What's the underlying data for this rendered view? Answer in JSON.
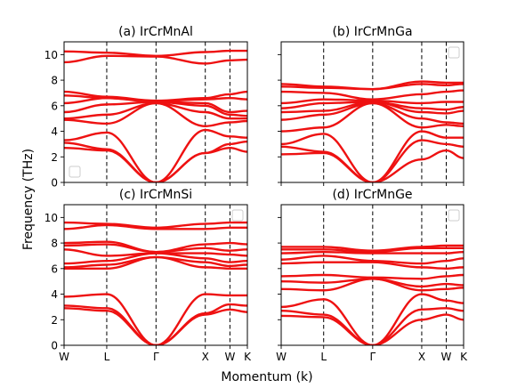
{
  "figure": {
    "ylabel": "Frequency (THz)",
    "xlabel": "Momentum (k)"
  },
  "colors": {
    "band": "#ee1111"
  },
  "chart_data": [
    {
      "type": "line",
      "title": "(a) IrCrMnAl",
      "xlabel": "Momentum (k)",
      "ylabel": "Frequency (THz)",
      "ylim": [
        0,
        11
      ],
      "yticks": [
        0,
        2,
        4,
        6,
        8,
        10
      ],
      "x_labels": [
        "W",
        "L",
        "Γ",
        "X",
        "W",
        "K"
      ],
      "x_positions": [
        0,
        0.866,
        1.866,
        2.866,
        3.366,
        3.72
      ],
      "grid": false,
      "legend": "empty box, bottom-left",
      "bands": [
        [
          [
            0,
            10.25
          ],
          [
            0.866,
            10.15
          ],
          [
            1.866,
            9.9
          ],
          [
            2.866,
            10.2
          ],
          [
            3.366,
            10.3
          ],
          [
            3.72,
            10.3
          ]
        ],
        [
          [
            0,
            9.4
          ],
          [
            0.866,
            9.9
          ],
          [
            1.866,
            9.85
          ],
          [
            2.866,
            9.3
          ],
          [
            3.366,
            9.55
          ],
          [
            3.72,
            9.6
          ]
        ],
        [
          [
            0,
            7.1
          ],
          [
            0.866,
            6.7
          ],
          [
            1.866,
            6.4
          ],
          [
            2.866,
            6.6
          ],
          [
            3.366,
            6.9
          ],
          [
            3.72,
            7.1
          ]
        ],
        [
          [
            0,
            6.8
          ],
          [
            0.866,
            6.6
          ],
          [
            1.866,
            6.35
          ],
          [
            2.866,
            6.5
          ],
          [
            3.366,
            6.6
          ],
          [
            3.72,
            6.5
          ]
        ],
        [
          [
            0,
            6.2
          ],
          [
            0.866,
            6.6
          ],
          [
            1.866,
            6.3
          ],
          [
            2.866,
            6.2
          ],
          [
            3.366,
            5.5
          ],
          [
            3.72,
            5.6
          ]
        ],
        [
          [
            0,
            5.5
          ],
          [
            0.866,
            6.1
          ],
          [
            1.866,
            6.3
          ],
          [
            2.866,
            6.0
          ],
          [
            3.366,
            5.3
          ],
          [
            3.72,
            5.2
          ]
        ],
        [
          [
            0,
            5.0
          ],
          [
            0.866,
            5.3
          ],
          [
            1.866,
            6.2
          ],
          [
            2.866,
            5.5
          ],
          [
            3.366,
            5.0
          ],
          [
            3.72,
            5.0
          ]
        ],
        [
          [
            0,
            4.9
          ],
          [
            0.866,
            4.6
          ],
          [
            1.866,
            6.2
          ],
          [
            2.866,
            4.4
          ],
          [
            3.366,
            4.7
          ],
          [
            3.72,
            4.8
          ]
        ],
        [
          [
            0,
            3.3
          ],
          [
            0.866,
            3.9
          ],
          [
            1.866,
            0
          ],
          [
            2.866,
            4.1
          ],
          [
            3.366,
            3.6
          ],
          [
            3.72,
            3.5
          ]
        ],
        [
          [
            0,
            3.1
          ],
          [
            0.866,
            2.6
          ],
          [
            1.866,
            0
          ],
          [
            2.866,
            2.3
          ],
          [
            3.366,
            3.0
          ],
          [
            3.72,
            3.2
          ]
        ],
        [
          [
            0,
            2.7
          ],
          [
            0.866,
            2.5
          ],
          [
            1.866,
            0
          ],
          [
            2.866,
            2.3
          ],
          [
            3.366,
            2.7
          ],
          [
            3.72,
            2.4
          ]
        ]
      ]
    },
    {
      "type": "line",
      "title": "(b) IrCrMnGa",
      "xlabel": "Momentum (k)",
      "ylabel": "Frequency (THz)",
      "ylim": [
        0,
        11
      ],
      "yticks": [
        0,
        2,
        4,
        6,
        8,
        10
      ],
      "x_labels": [
        "W",
        "L",
        "Γ",
        "X",
        "W",
        "K"
      ],
      "x_positions": [
        0,
        0.866,
        1.866,
        2.866,
        3.366,
        3.72
      ],
      "grid": false,
      "legend": "empty box, top-right",
      "bands": [
        [
          [
            0,
            7.7
          ],
          [
            0.866,
            7.5
          ],
          [
            1.866,
            7.3
          ],
          [
            2.866,
            7.9
          ],
          [
            3.366,
            7.8
          ],
          [
            3.72,
            7.8
          ]
        ],
        [
          [
            0,
            7.5
          ],
          [
            0.866,
            7.4
          ],
          [
            1.866,
            7.3
          ],
          [
            2.866,
            7.7
          ],
          [
            3.366,
            7.6
          ],
          [
            3.72,
            7.7
          ]
        ],
        [
          [
            0,
            7.1
          ],
          [
            0.866,
            7.0
          ],
          [
            1.866,
            6.5
          ],
          [
            2.866,
            6.9
          ],
          [
            3.366,
            7.1
          ],
          [
            3.72,
            7.2
          ]
        ],
        [
          [
            0,
            6.2
          ],
          [
            0.866,
            6.5
          ],
          [
            1.866,
            6.4
          ],
          [
            2.866,
            6.2
          ],
          [
            3.366,
            6.3
          ],
          [
            3.72,
            6.3
          ]
        ],
        [
          [
            0,
            5.8
          ],
          [
            0.866,
            6.2
          ],
          [
            1.866,
            6.3
          ],
          [
            2.866,
            5.8
          ],
          [
            3.366,
            5.7
          ],
          [
            3.72,
            5.9
          ]
        ],
        [
          [
            0,
            5.5
          ],
          [
            0.866,
            5.6
          ],
          [
            1.866,
            6.3
          ],
          [
            2.866,
            5.5
          ],
          [
            3.366,
            5.4
          ],
          [
            3.72,
            5.6
          ]
        ],
        [
          [
            0,
            4.9
          ],
          [
            0.866,
            5.3
          ],
          [
            1.866,
            6.2
          ],
          [
            2.866,
            5.0
          ],
          [
            3.366,
            4.7
          ],
          [
            3.72,
            4.6
          ]
        ],
        [
          [
            0,
            4.0
          ],
          [
            0.866,
            4.3
          ],
          [
            1.866,
            6.2
          ],
          [
            2.866,
            4.3
          ],
          [
            3.366,
            4.5
          ],
          [
            3.72,
            4.4
          ]
        ],
        [
          [
            0,
            3.0
          ],
          [
            0.866,
            3.8
          ],
          [
            1.866,
            0
          ],
          [
            2.866,
            4.0
          ],
          [
            3.366,
            3.5
          ],
          [
            3.72,
            3.5
          ]
        ],
        [
          [
            0,
            2.8
          ],
          [
            0.866,
            2.4
          ],
          [
            1.866,
            0
          ],
          [
            2.866,
            3.3
          ],
          [
            3.366,
            3.0
          ],
          [
            3.72,
            2.8
          ]
        ],
        [
          [
            0,
            2.2
          ],
          [
            0.866,
            2.3
          ],
          [
            1.866,
            0
          ],
          [
            2.866,
            1.8
          ],
          [
            3.366,
            2.5
          ],
          [
            3.72,
            1.9
          ]
        ]
      ]
    },
    {
      "type": "line",
      "title": "(c) IrCrMnSi",
      "xlabel": "Momentum (k)",
      "ylabel": "Frequency (THz)",
      "ylim": [
        0,
        11
      ],
      "yticks": [
        0,
        2,
        4,
        6,
        8,
        10
      ],
      "x_labels": [
        "W",
        "L",
        "Γ",
        "X",
        "W",
        "K"
      ],
      "x_positions": [
        0,
        0.866,
        1.866,
        2.866,
        3.366,
        3.72
      ],
      "grid": false,
      "legend": "empty box, top-right",
      "bands": [
        [
          [
            0,
            9.6
          ],
          [
            0.866,
            9.5
          ],
          [
            1.866,
            9.2
          ],
          [
            2.866,
            9.5
          ],
          [
            3.366,
            9.6
          ],
          [
            3.72,
            9.6
          ]
        ],
        [
          [
            0,
            9.1
          ],
          [
            0.866,
            9.4
          ],
          [
            1.866,
            9.1
          ],
          [
            2.866,
            9.1
          ],
          [
            3.366,
            9.2
          ],
          [
            3.72,
            9.2
          ]
        ],
        [
          [
            0,
            8.0
          ],
          [
            0.866,
            8.1
          ],
          [
            1.866,
            7.3
          ],
          [
            2.866,
            7.9
          ],
          [
            3.366,
            8.0
          ],
          [
            3.72,
            7.9
          ]
        ],
        [
          [
            0,
            7.8
          ],
          [
            0.866,
            7.9
          ],
          [
            1.866,
            7.3
          ],
          [
            2.866,
            7.6
          ],
          [
            3.366,
            7.4
          ],
          [
            3.72,
            7.5
          ]
        ],
        [
          [
            0,
            7.5
          ],
          [
            0.866,
            7.0
          ],
          [
            1.866,
            7.2
          ],
          [
            2.866,
            7.2
          ],
          [
            3.366,
            7.1
          ],
          [
            3.72,
            7.0
          ]
        ],
        [
          [
            0,
            6.4
          ],
          [
            0.866,
            6.6
          ],
          [
            1.866,
            7.2
          ],
          [
            2.866,
            6.8
          ],
          [
            3.366,
            6.5
          ],
          [
            3.72,
            6.6
          ]
        ],
        [
          [
            0,
            6.1
          ],
          [
            0.866,
            6.3
          ],
          [
            1.866,
            6.9
          ],
          [
            2.866,
            6.5
          ],
          [
            3.366,
            6.2
          ],
          [
            3.72,
            6.3
          ]
        ],
        [
          [
            0,
            6.0
          ],
          [
            0.866,
            6.0
          ],
          [
            1.866,
            6.9
          ],
          [
            2.866,
            6.1
          ],
          [
            3.366,
            6.0
          ],
          [
            3.72,
            6.0
          ]
        ],
        [
          [
            0,
            3.8
          ],
          [
            0.866,
            4.0
          ],
          [
            1.866,
            0
          ],
          [
            2.866,
            4.0
          ],
          [
            3.366,
            3.9
          ],
          [
            3.72,
            3.9
          ]
        ],
        [
          [
            0,
            3.1
          ],
          [
            0.866,
            2.9
          ],
          [
            1.866,
            0
          ],
          [
            2.866,
            2.5
          ],
          [
            3.366,
            3.2
          ],
          [
            3.72,
            3.1
          ]
        ],
        [
          [
            0,
            2.9
          ],
          [
            0.866,
            2.7
          ],
          [
            1.866,
            0
          ],
          [
            2.866,
            2.4
          ],
          [
            3.366,
            2.8
          ],
          [
            3.72,
            2.6
          ]
        ]
      ]
    },
    {
      "type": "line",
      "title": "(d) IrCrMnGe",
      "xlabel": "Momentum (k)",
      "ylabel": "Frequency (THz)",
      "ylim": [
        0,
        11
      ],
      "yticks": [
        0,
        2,
        4,
        6,
        8,
        10
      ],
      "x_labels": [
        "W",
        "L",
        "Γ",
        "X",
        "W",
        "K"
      ],
      "x_positions": [
        0,
        0.866,
        1.866,
        2.866,
        3.366,
        3.72
      ],
      "grid": false,
      "legend": "empty box, top-right",
      "bands": [
        [
          [
            0,
            7.7
          ],
          [
            0.866,
            7.7
          ],
          [
            1.866,
            7.4
          ],
          [
            2.866,
            7.7
          ],
          [
            3.366,
            7.8
          ],
          [
            3.72,
            7.8
          ]
        ],
        [
          [
            0,
            7.5
          ],
          [
            0.866,
            7.5
          ],
          [
            1.866,
            7.3
          ],
          [
            2.866,
            7.6
          ],
          [
            3.366,
            7.6
          ],
          [
            3.72,
            7.6
          ]
        ],
        [
          [
            0,
            7.2
          ],
          [
            0.866,
            7.3
          ],
          [
            1.866,
            7.2
          ],
          [
            2.866,
            7.2
          ],
          [
            3.366,
            7.2
          ],
          [
            3.72,
            7.3
          ]
        ],
        [
          [
            0,
            6.7
          ],
          [
            0.866,
            7.0
          ],
          [
            1.866,
            6.6
          ],
          [
            2.866,
            6.4
          ],
          [
            3.366,
            6.6
          ],
          [
            3.72,
            6.8
          ]
        ],
        [
          [
            0,
            6.4
          ],
          [
            0.866,
            6.5
          ],
          [
            1.866,
            6.5
          ],
          [
            2.866,
            6.1
          ],
          [
            3.366,
            6.0
          ],
          [
            3.72,
            6.1
          ]
        ],
        [
          [
            0,
            5.4
          ],
          [
            0.866,
            5.5
          ],
          [
            1.866,
            5.3
          ],
          [
            2.866,
            5.2
          ],
          [
            3.366,
            5.4
          ],
          [
            3.72,
            5.5
          ]
        ],
        [
          [
            0,
            5.0
          ],
          [
            0.866,
            4.9
          ],
          [
            1.866,
            5.2
          ],
          [
            2.866,
            4.6
          ],
          [
            3.366,
            4.8
          ],
          [
            3.72,
            4.7
          ]
        ],
        [
          [
            0,
            4.4
          ],
          [
            0.866,
            4.3
          ],
          [
            1.866,
            5.2
          ],
          [
            2.866,
            4.3
          ],
          [
            3.366,
            4.4
          ],
          [
            3.72,
            4.5
          ]
        ],
        [
          [
            0,
            3.0
          ],
          [
            0.866,
            3.6
          ],
          [
            1.866,
            0
          ],
          [
            2.866,
            4.0
          ],
          [
            3.366,
            3.5
          ],
          [
            3.72,
            3.3
          ]
        ],
        [
          [
            0,
            2.7
          ],
          [
            0.866,
            2.4
          ],
          [
            1.866,
            0
          ],
          [
            2.866,
            2.8
          ],
          [
            3.366,
            2.9
          ],
          [
            3.72,
            2.7
          ]
        ],
        [
          [
            0,
            2.3
          ],
          [
            0.866,
            2.2
          ],
          [
            1.866,
            0
          ],
          [
            2.866,
            2.0
          ],
          [
            3.366,
            2.4
          ],
          [
            3.72,
            2.0
          ]
        ]
      ]
    }
  ]
}
